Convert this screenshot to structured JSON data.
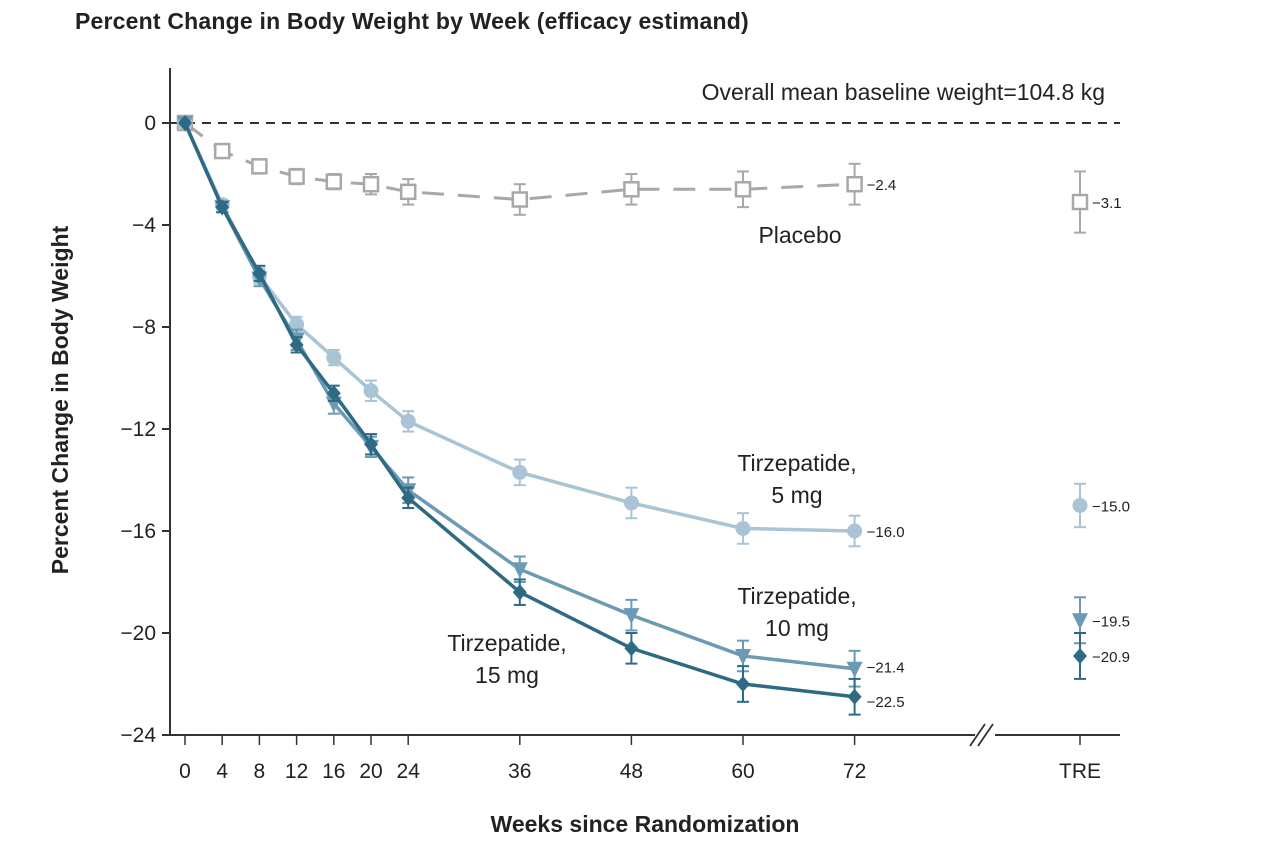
{
  "chart_data": {
    "type": "line",
    "title": "Percent Change in Body Weight by Week (efficacy estimand)",
    "xlabel": "Weeks since Randomization",
    "ylabel": "Percent Change in Body Weight",
    "annotation": "Overall mean baseline weight=104.8 kg",
    "x": [
      0,
      4,
      8,
      12,
      16,
      20,
      24,
      36,
      48,
      60,
      72
    ],
    "x_tick_labels": [
      "0",
      "4",
      "8",
      "12",
      "16",
      "20",
      "24",
      "36",
      "48",
      "60",
      "72",
      "TRE"
    ],
    "y_ticks": [
      0,
      -4,
      -8,
      -12,
      -16,
      -20,
      -24
    ],
    "y_tick_labels": [
      "0",
      "−4",
      "−8",
      "−12",
      "−16",
      "−20",
      "−24"
    ],
    "ylim": [
      -24,
      2
    ],
    "xlim": [
      0,
      72
    ],
    "grid": false,
    "reference_line": 0,
    "series": [
      {
        "name": "Placebo",
        "label_lines": [
          "Placebo"
        ],
        "marker": "open-square",
        "color": "#a8a8a8",
        "dashed": true,
        "values": [
          0,
          -1.1,
          -1.7,
          -2.1,
          -2.3,
          -2.4,
          -2.7,
          -3.0,
          -2.6,
          -2.6,
          -2.4
        ],
        "err": [
          0,
          0.2,
          0.2,
          0.3,
          0.3,
          0.4,
          0.5,
          0.6,
          0.6,
          0.7,
          0.8
        ],
        "end_label": "−2.4",
        "tre": -3.1,
        "tre_err": 1.2,
        "tre_label": "−3.1"
      },
      {
        "name": "Tirzepatide, 5 mg",
        "label_lines": [
          "Tirzepatide,",
          "5 mg"
        ],
        "marker": "circle",
        "color": "#a9c4d4",
        "values": [
          0,
          -3.2,
          -6.0,
          -7.9,
          -9.2,
          -10.5,
          -11.7,
          -13.7,
          -14.9,
          -15.9,
          -16.0
        ],
        "err": [
          0,
          0.2,
          0.3,
          0.3,
          0.3,
          0.4,
          0.4,
          0.5,
          0.6,
          0.6,
          0.6
        ],
        "end_label": "−16.0",
        "tre": -15.0,
        "tre_err": 0.85,
        "tre_label": "−15.0"
      },
      {
        "name": "Tirzepatide, 10 mg",
        "label_lines": [
          "Tirzepatide,",
          "10 mg"
        ],
        "marker": "triangle-down",
        "color": "#6a9ab4",
        "values": [
          0,
          -3.3,
          -6.1,
          -8.5,
          -11.0,
          -12.7,
          -14.4,
          -17.5,
          -19.3,
          -20.9,
          -21.4
        ],
        "err": [
          0,
          0.2,
          0.3,
          0.4,
          0.4,
          0.4,
          0.5,
          0.5,
          0.6,
          0.6,
          0.7
        ],
        "end_label": "−21.4",
        "tre": -19.5,
        "tre_err": 0.9,
        "tre_label": "−19.5"
      },
      {
        "name": "Tirzepatide, 15 mg",
        "label_lines": [
          "Tirzepatide,",
          "15 mg"
        ],
        "marker": "diamond",
        "color": "#2e6a84",
        "values": [
          0,
          -3.3,
          -5.9,
          -8.7,
          -10.6,
          -12.6,
          -14.7,
          -18.4,
          -20.6,
          -22.0,
          -22.5
        ],
        "err": [
          0,
          0.2,
          0.3,
          0.3,
          0.3,
          0.4,
          0.4,
          0.5,
          0.6,
          0.7,
          0.7
        ],
        "end_label": "−22.5",
        "tre": -20.9,
        "tre_err": 0.9,
        "tre_label": "−20.9"
      }
    ]
  }
}
